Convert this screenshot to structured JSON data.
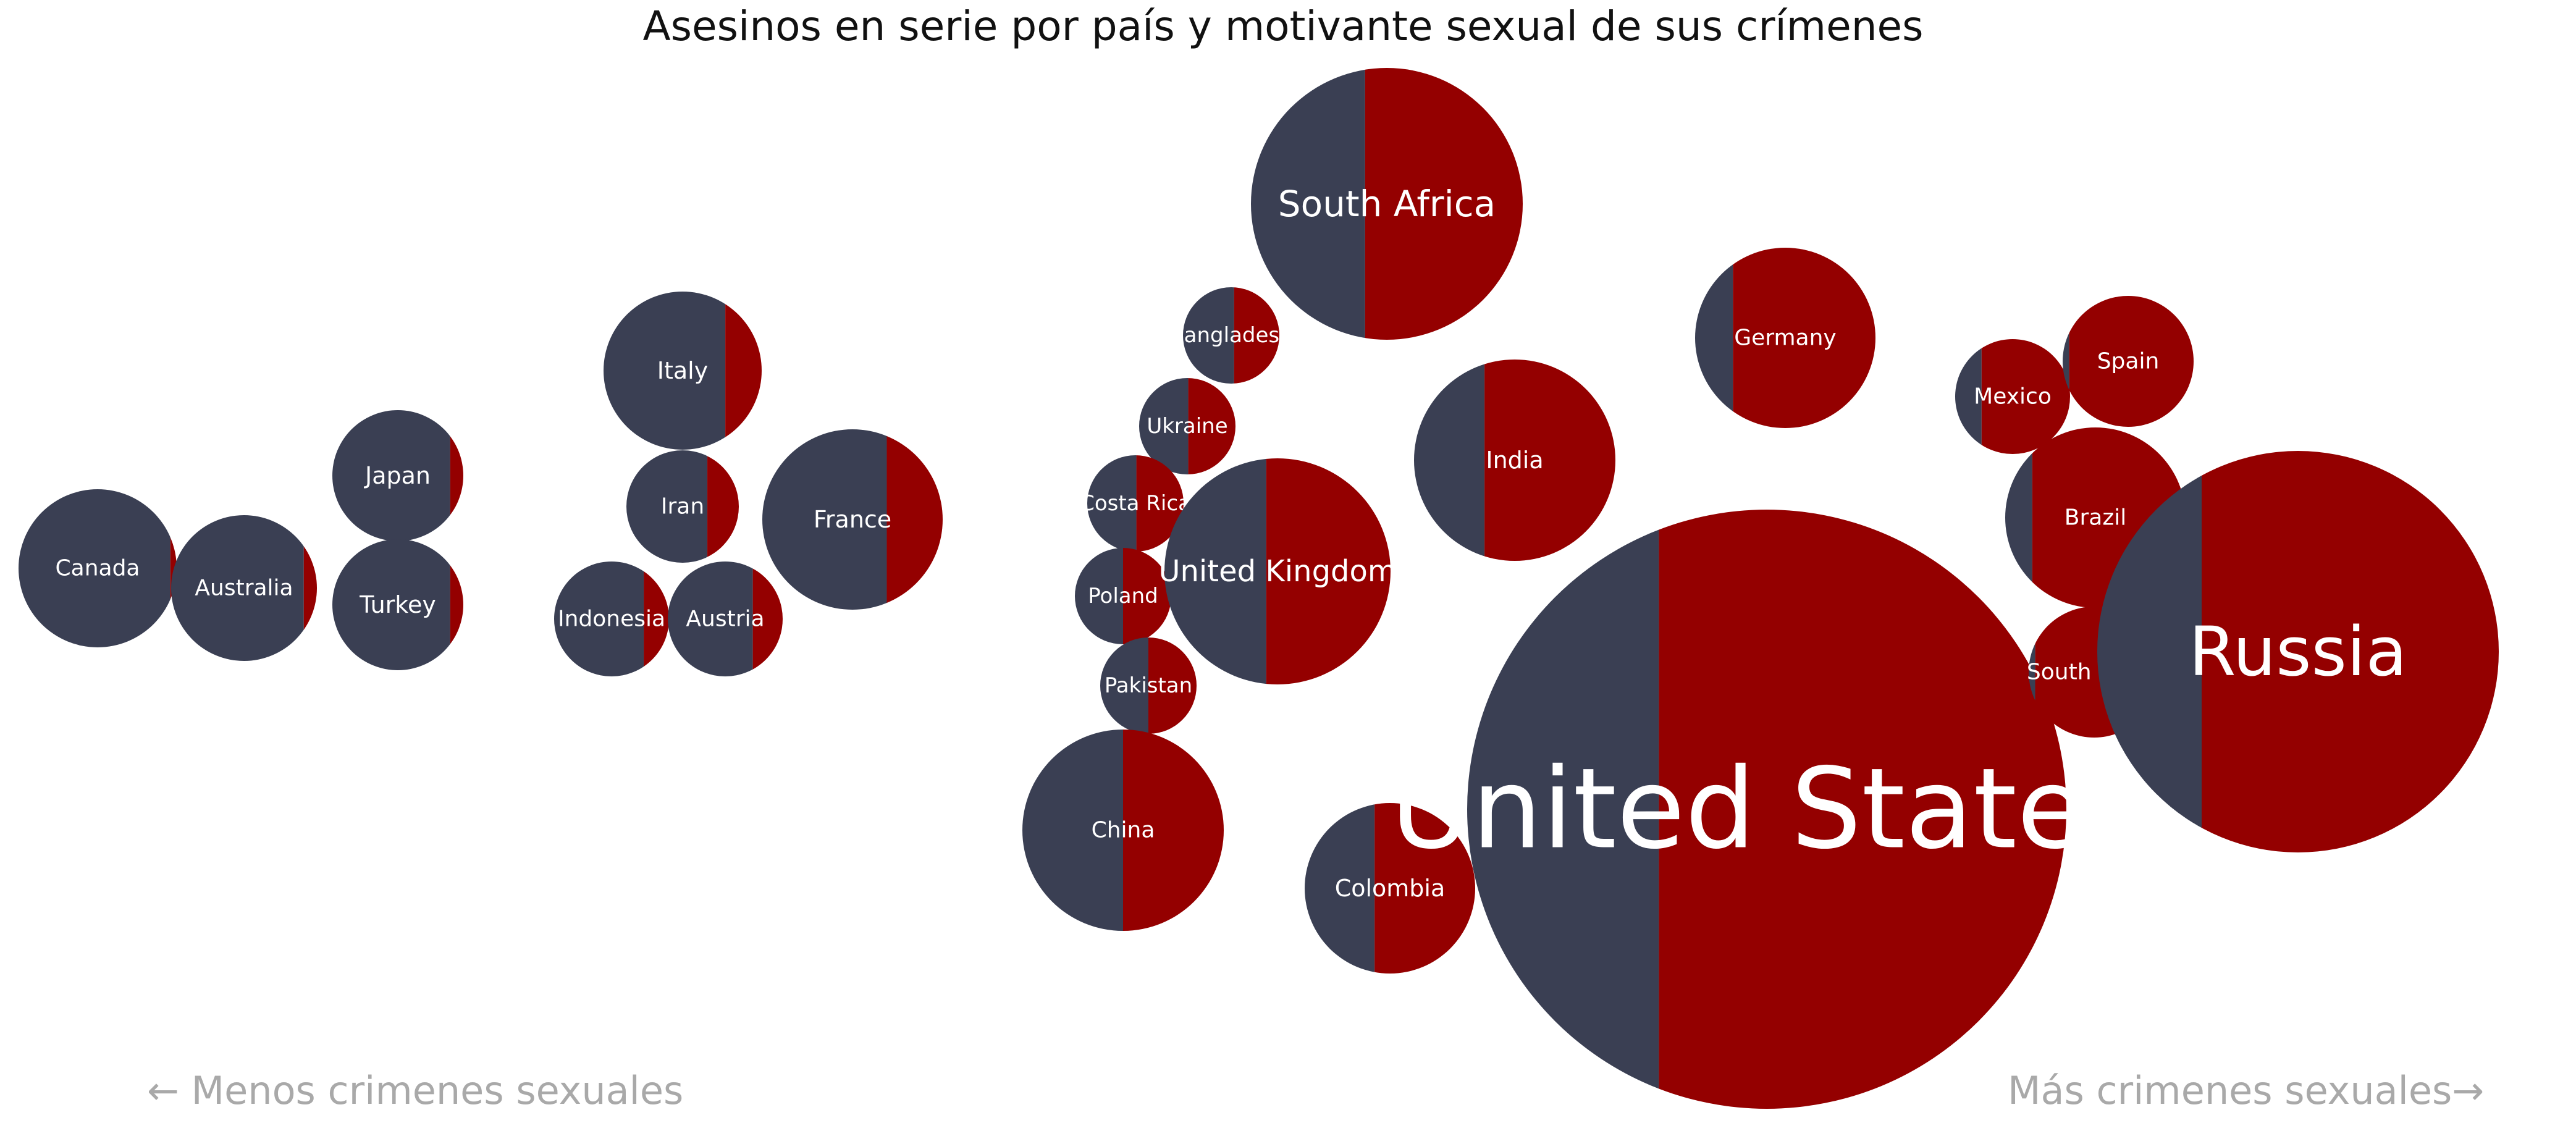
{
  "chart_data": {
    "type": "bubble",
    "title": "Asesinos en serie por país y motivante sexual de sus crímenes",
    "left_note": "← Menos crimenes sexuales",
    "right_note": "Más crimenes sexuales→",
    "colors": {
      "non_sexual": "#3a3f53",
      "sexual": "#940000"
    },
    "countries": [
      {
        "label": "Canada",
        "size": 1.0,
        "sexual_share": 0.04
      },
      {
        "label": "Australia",
        "size": 1.0,
        "sexual_share": 0.09
      },
      {
        "label": "Japan",
        "size": 0.8,
        "sexual_share": 0.1
      },
      {
        "label": "Turkey",
        "size": 0.8,
        "sexual_share": 0.1
      },
      {
        "label": "Italy",
        "size": 1.0,
        "sexual_share": 0.23
      },
      {
        "label": "Iran",
        "size": 0.55,
        "sexual_share": 0.28
      },
      {
        "label": "Indonesia",
        "size": 0.55,
        "sexual_share": 0.22
      },
      {
        "label": "Austria",
        "size": 0.55,
        "sexual_share": 0.26
      },
      {
        "label": "France",
        "size": 1.3,
        "sexual_share": 0.31
      },
      {
        "label": "Bangladesh",
        "size": 0.35,
        "sexual_share": 0.47
      },
      {
        "label": "Ukraine",
        "size": 0.35,
        "sexual_share": 0.49
      },
      {
        "label": "Costa Rica",
        "size": 0.35,
        "sexual_share": 0.49
      },
      {
        "label": "Poland",
        "size": 0.35,
        "sexual_share": 0.5
      },
      {
        "label": "Pakistan",
        "size": 0.35,
        "sexual_share": 0.5
      },
      {
        "label": "China",
        "size": 1.6,
        "sexual_share": 0.5
      },
      {
        "label": "United Kingdom",
        "size": 2.0,
        "sexual_share": 0.55
      },
      {
        "label": "South Africa",
        "size": 2.9,
        "sexual_share": 0.58
      },
      {
        "label": "India",
        "size": 1.6,
        "sexual_share": 0.65
      },
      {
        "label": "Colombia",
        "size": 1.1,
        "sexual_share": 0.59
      },
      {
        "label": "United States",
        "size": 14.0,
        "sexual_share": 0.68
      },
      {
        "label": "Germany",
        "size": 1.3,
        "sexual_share": 0.79
      },
      {
        "label": "Mexico",
        "size": 0.55,
        "sexual_share": 0.77
      },
      {
        "label": "Spain",
        "size": 0.7,
        "sexual_share": 0.95
      },
      {
        "label": "Brazil",
        "size": 1.3,
        "sexual_share": 0.85
      },
      {
        "label": "South Korea",
        "size": 0.7,
        "sexual_share": 0.95
      },
      {
        "label": "Russia",
        "size": 4.0,
        "sexual_share": 0.74
      }
    ]
  }
}
